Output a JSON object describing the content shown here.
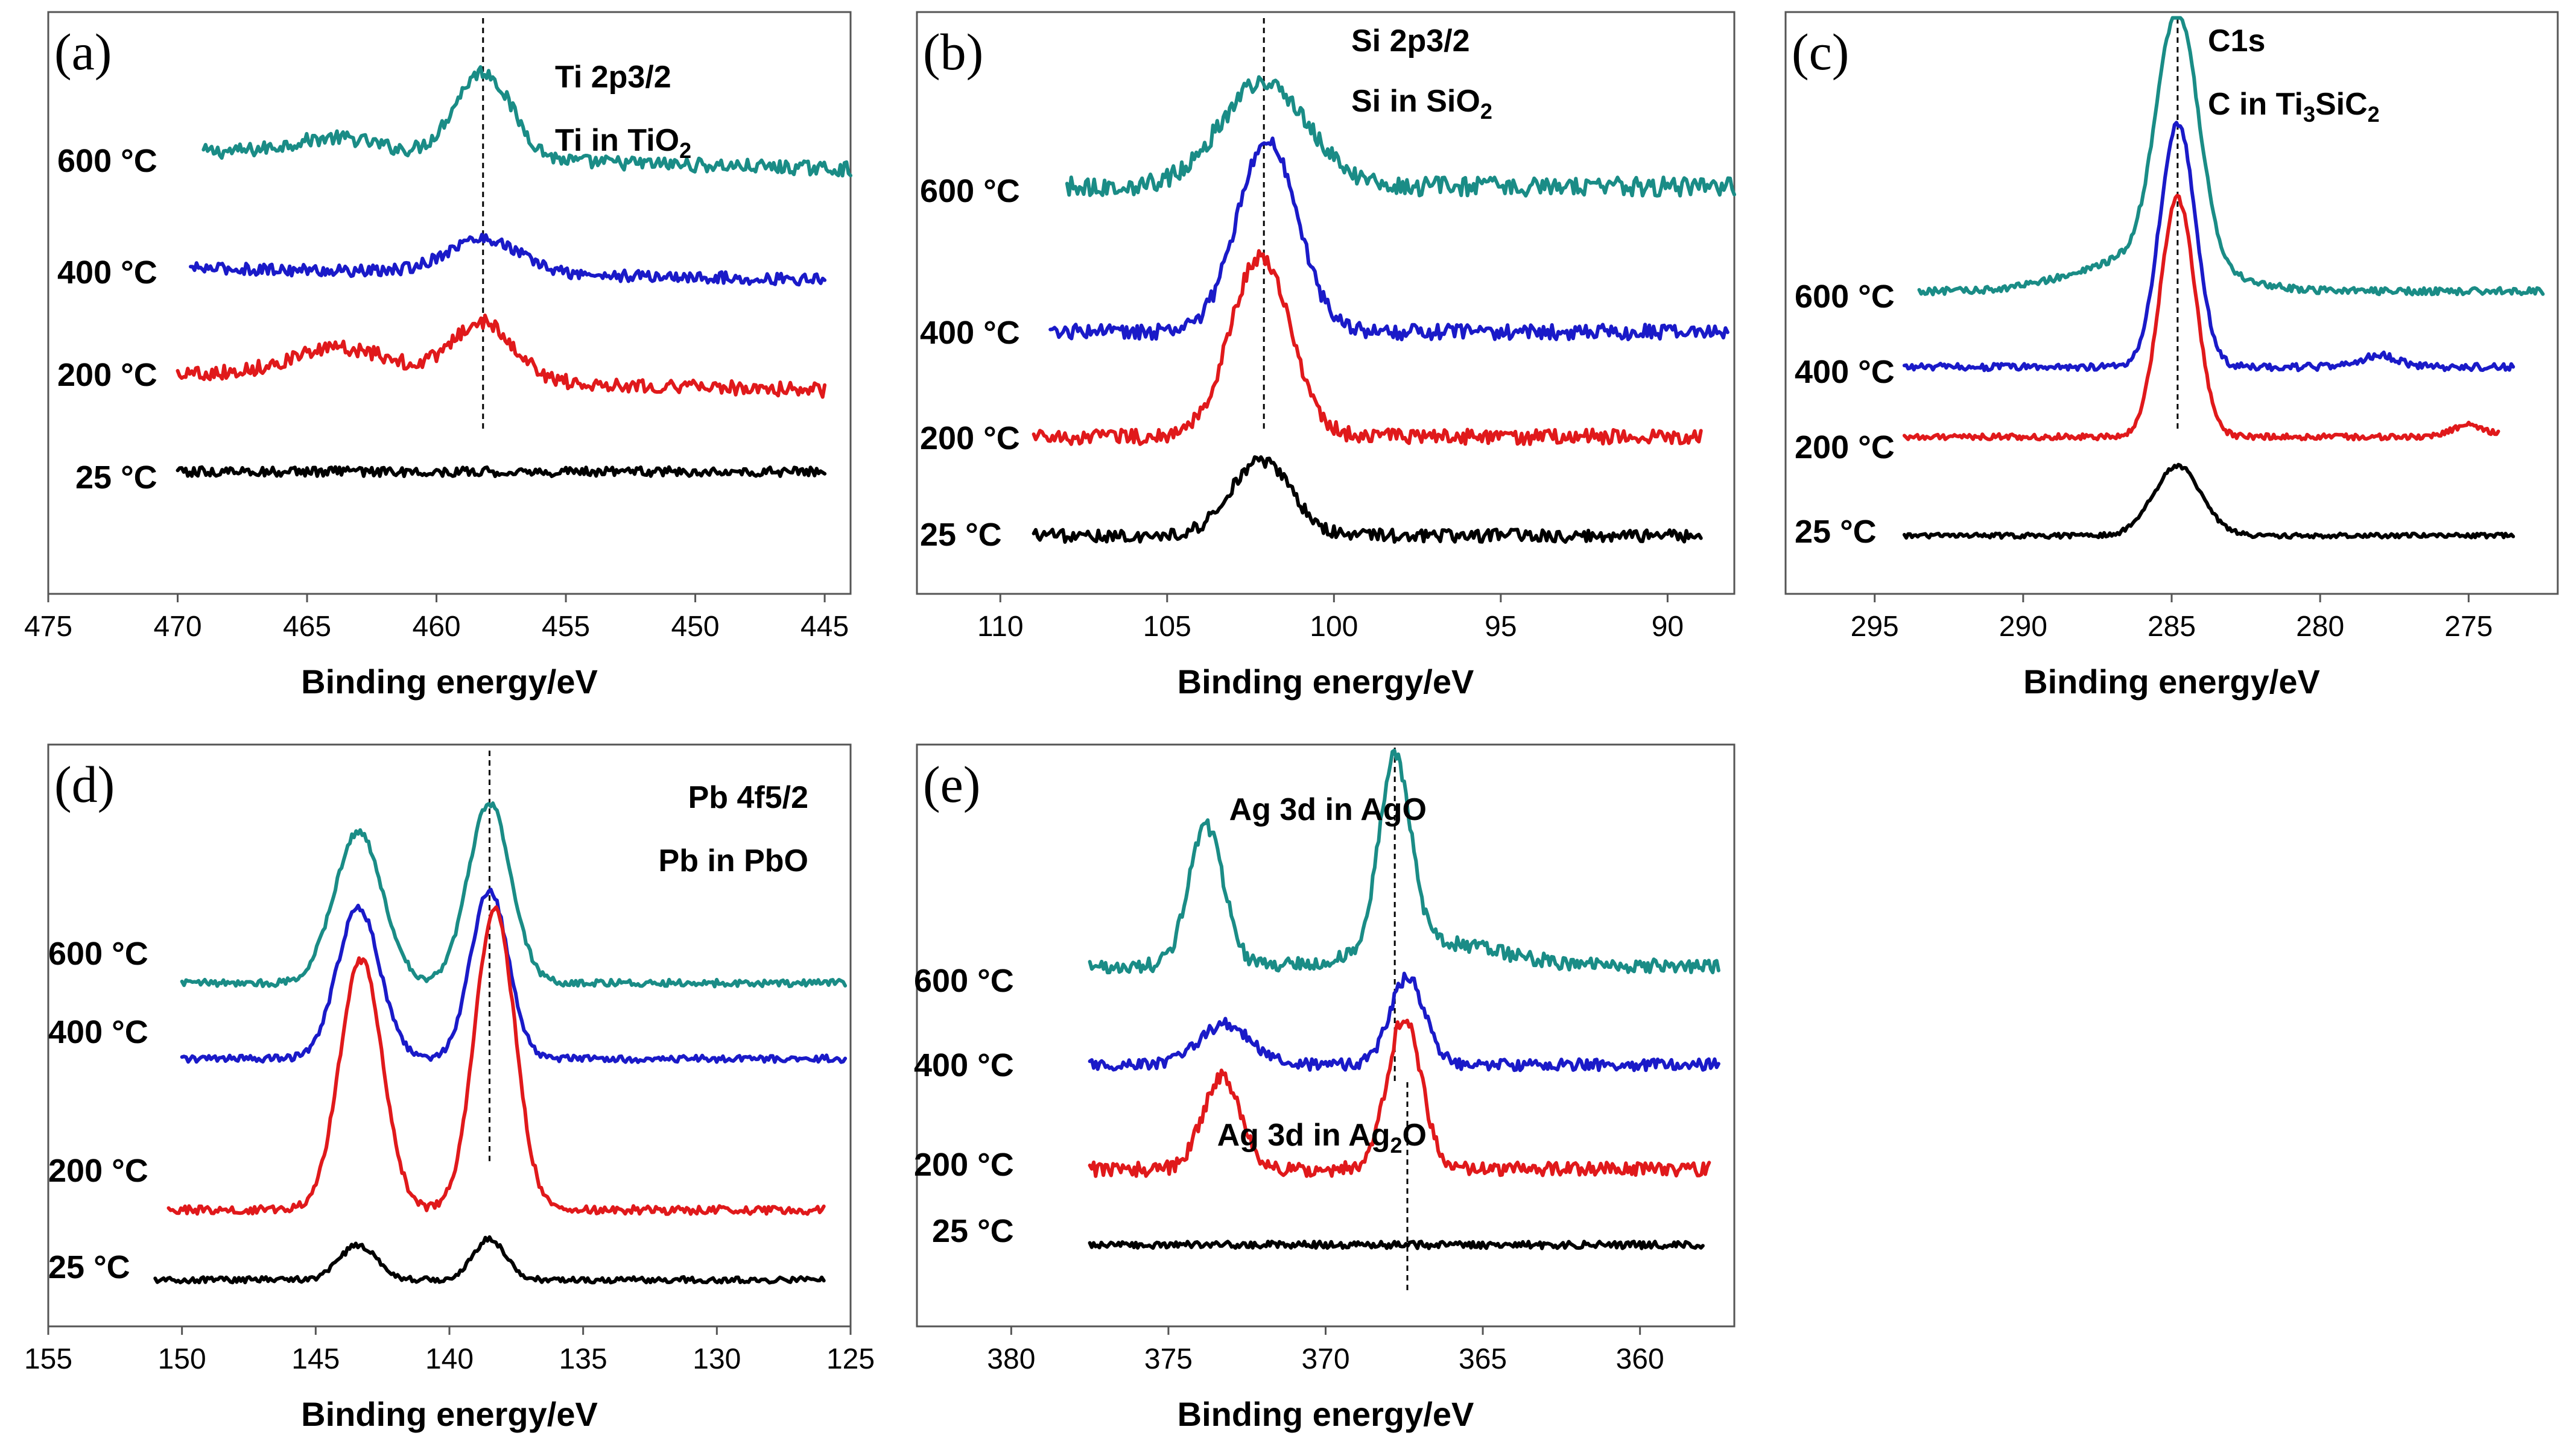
{
  "colors": {
    "600 °C": "#1a8c86",
    "400 °C": "#1a1ac8",
    "200 °C": "#e0191b",
    "25 °C": "#000000"
  },
  "chart_data": [
    {
      "type": "line",
      "panel": "(a)",
      "annotations": [
        {
          "text": "Ti 2p3/2"
        },
        {
          "text": "Ti in TiO",
          "sub": "2"
        }
      ],
      "xlabel": "Binding energy/eV",
      "ylabel": "",
      "xlim": [
        475,
        444
      ],
      "xticks": [
        475,
        470,
        465,
        460,
        455,
        450,
        445
      ],
      "ref_energy": 458.2,
      "series": [
        {
          "name": "600 °C",
          "color": "#1a8c86",
          "x_range": [
            469,
            444
          ],
          "base": 0.76,
          "peaks": [
            [
              458.2,
              0.15,
              1.1
            ],
            [
              463.8,
              0.03,
              1.8
            ]
          ],
          "slope": -0.03,
          "noise": 0.012
        },
        {
          "name": "400 °C",
          "color": "#1a1ac8",
          "x_range": [
            469.5,
            445
          ],
          "base": 0.56,
          "peaks": [
            [
              458.2,
              0.06,
              1.4
            ]
          ],
          "slope": -0.02,
          "noise": 0.01
        },
        {
          "name": "200 °C",
          "color": "#e0191b",
          "x_range": [
            470,
            445
          ],
          "base": 0.38,
          "peaks": [
            [
              458.2,
              0.1,
              1.2
            ],
            [
              463.6,
              0.05,
              2.0
            ]
          ],
          "slope": -0.03,
          "noise": 0.012
        },
        {
          "name": "25 °C",
          "color": "#000000",
          "x_range": [
            470,
            445
          ],
          "base": 0.21,
          "peaks": [],
          "slope": 0.0,
          "noise": 0.008
        }
      ]
    },
    {
      "type": "line",
      "panel": "(b)",
      "annotations": [
        {
          "text": "Si 2p3/2"
        },
        {
          "text": "Si in SiO",
          "sub": "2"
        }
      ],
      "xlabel": "Binding energy/eV",
      "ylabel": "",
      "xlim": [
        112.5,
        88
      ],
      "xticks": [
        110,
        105,
        100,
        95,
        90
      ],
      "ref_energy": 102.1,
      "series": [
        {
          "name": "600 °C",
          "color": "#1a8c86",
          "x_range": [
            108,
            88
          ],
          "base": 0.7,
          "peaks": [
            [
              102.1,
              0.18,
              1.3
            ]
          ],
          "slope": 0.0,
          "noise": 0.016
        },
        {
          "name": "400 °C",
          "color": "#1a1ac8",
          "x_range": [
            108.5,
            88.2
          ],
          "base": 0.45,
          "peaks": [
            [
              102.0,
              0.33,
              0.9
            ]
          ],
          "slope": 0.0,
          "noise": 0.013
        },
        {
          "name": "200 °C",
          "color": "#e0191b",
          "x_range": [
            109,
            89
          ],
          "base": 0.27,
          "peaks": [
            [
              102.2,
              0.31,
              0.9
            ]
          ],
          "slope": 0.0,
          "noise": 0.013
        },
        {
          "name": "25 °C",
          "color": "#000000",
          "x_range": [
            109,
            89
          ],
          "base": 0.1,
          "peaks": [
            [
              102.2,
              0.13,
              0.9
            ]
          ],
          "slope": 0.0,
          "noise": 0.011
        }
      ]
    },
    {
      "type": "line",
      "panel": "(c)",
      "annotations": [
        {
          "text": "C1s"
        },
        {
          "text": "C in Ti",
          "sub": "3",
          "text2": "SiC",
          "sub2": "2"
        }
      ],
      "xlabel": "Binding energy/eV",
      "ylabel": "",
      "xlim": [
        298,
        272
      ],
      "xticks": [
        295,
        290,
        285,
        280,
        275
      ],
      "ref_energy": 284.8,
      "series": [
        {
          "name": "600 °C",
          "color": "#1a8c86",
          "x_range": [
            293.5,
            272.5
          ],
          "base": 0.52,
          "peaks": [
            [
              284.8,
              0.43,
              0.7
            ],
            [
              285.8,
              0.06,
              2.2
            ]
          ],
          "slope": 0.0,
          "noise": 0.006
        },
        {
          "name": "400 °C",
          "color": "#1a1ac8",
          "x_range": [
            294,
            273.5
          ],
          "base": 0.39,
          "peaks": [
            [
              284.8,
              0.42,
              0.6
            ],
            [
              278.0,
              0.02,
              0.6
            ]
          ],
          "slope": 0.0,
          "noise": 0.006
        },
        {
          "name": "200 °C",
          "color": "#e0191b",
          "x_range": [
            294,
            274
          ],
          "base": 0.27,
          "peaks": [
            [
              284.8,
              0.41,
              0.6
            ],
            [
              275.0,
              0.02,
              0.6
            ]
          ],
          "slope": 0.0,
          "noise": 0.005
        },
        {
          "name": "25 °C",
          "color": "#000000",
          "x_range": [
            294,
            273.5
          ],
          "base": 0.1,
          "peaks": [
            [
              284.8,
              0.12,
              0.8
            ]
          ],
          "slope": 0.0,
          "noise": 0.004
        }
      ]
    },
    {
      "type": "line",
      "panel": "(d)",
      "annotations": [
        {
          "text": "Pb 4f5/2"
        },
        {
          "text": "Pb in PbO"
        }
      ],
      "xlabel": "Binding energy/eV",
      "ylabel": "",
      "xlim": [
        155,
        125
      ],
      "xticks": [
        155,
        150,
        145,
        140,
        135,
        130,
        125
      ],
      "ref_energy": 138.5,
      "series": [
        {
          "name": "600 °C",
          "color": "#1a8c86",
          "x_range": [
            150,
            125.2
          ],
          "base": 0.59,
          "peaks": [
            [
              143.4,
              0.26,
              0.9
            ],
            [
              138.5,
              0.31,
              0.8
            ]
          ],
          "slope": 0.0,
          "noise": 0.006
        },
        {
          "name": "400 °C",
          "color": "#1a1ac8",
          "x_range": [
            150,
            125.2
          ],
          "base": 0.46,
          "peaks": [
            [
              143.4,
              0.26,
              0.8
            ],
            [
              138.5,
              0.29,
              0.7
            ]
          ],
          "slope": 0.0,
          "noise": 0.006
        },
        {
          "name": "200 °C",
          "color": "#e0191b",
          "x_range": [
            150.5,
            126
          ],
          "base": 0.2,
          "peaks": [
            [
              143.3,
              0.43,
              0.8
            ],
            [
              138.3,
              0.52,
              0.75
            ]
          ],
          "slope": 0.0,
          "noise": 0.007
        },
        {
          "name": "25 °C",
          "color": "#000000",
          "x_range": [
            151,
            126
          ],
          "base": 0.08,
          "peaks": [
            [
              143.4,
              0.06,
              0.7
            ],
            [
              138.5,
              0.07,
              0.6
            ]
          ],
          "slope": 0.0,
          "noise": 0.005
        }
      ]
    },
    {
      "type": "line",
      "panel": "(e)",
      "annotations": [
        {
          "text": "Ag 3d in AgO"
        },
        {
          "text": "Ag 3d in Ag",
          "sub": "2",
          "text2": "O",
          "sub2": ""
        }
      ],
      "xlabel": "Binding energy/eV",
      "ylabel": "",
      "xlim": [
        383,
        357
      ],
      "xticks": [
        380,
        375,
        370,
        365,
        360
      ],
      "ref_energy_1": 367.8,
      "ref_energy_2": 367.4,
      "series": [
        {
          "name": "600 °C",
          "color": "#1a8c86",
          "x_range": [
            377.5,
            357.5
          ],
          "base": 0.62,
          "peaks": [
            [
              373.8,
              0.24,
              0.55
            ],
            [
              367.8,
              0.33,
              0.5
            ],
            [
              366.5,
              0.04,
              2.0
            ]
          ],
          "slope": 0.0,
          "noise": 0.012
        },
        {
          "name": "400 °C",
          "color": "#1a1ac8",
          "x_range": [
            377.5,
            357.5
          ],
          "base": 0.45,
          "peaks": [
            [
              373.2,
              0.07,
              0.8
            ],
            [
              367.4,
              0.15,
              0.55
            ]
          ],
          "slope": 0.0,
          "noise": 0.01
        },
        {
          "name": "200 °C",
          "color": "#e0191b",
          "x_range": [
            377.5,
            357.8
          ],
          "base": 0.27,
          "peaks": [
            [
              373.3,
              0.16,
              0.6
            ],
            [
              367.5,
              0.26,
              0.55
            ]
          ],
          "slope": 0.0,
          "noise": 0.012
        },
        {
          "name": "25 °C",
          "color": "#000000",
          "x_range": [
            377.5,
            358
          ],
          "base": 0.14,
          "peaks": [],
          "slope": 0.0,
          "noise": 0.006
        }
      ]
    }
  ]
}
